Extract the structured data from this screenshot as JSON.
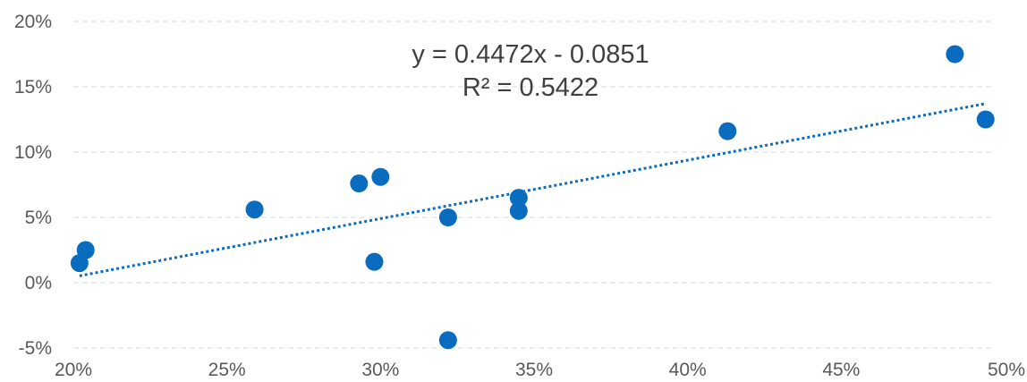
{
  "chart_data": {
    "type": "scatter",
    "title": "",
    "xlabel": "",
    "ylabel": "",
    "xlim": [
      0.2,
      0.5
    ],
    "ylim": [
      -0.05,
      0.2
    ],
    "x_ticks": [
      0.2,
      0.25,
      0.3,
      0.35,
      0.4,
      0.45,
      0.5
    ],
    "x_tick_labels": [
      "20%",
      "25%",
      "30%",
      "35%",
      "40%",
      "45%",
      "50%"
    ],
    "y_ticks": [
      -0.05,
      0,
      0.05,
      0.1,
      0.15,
      0.2
    ],
    "y_tick_labels": [
      "-5%",
      "0%",
      "5%",
      "10%",
      "15%",
      "20%"
    ],
    "grid": "horizontal dashed",
    "legend": "none",
    "color": "#0a6cbf",
    "series": [
      {
        "points": [
          {
            "x": 0.202,
            "y": 0.015
          },
          {
            "x": 0.204,
            "y": 0.025
          },
          {
            "x": 0.259,
            "y": 0.056
          },
          {
            "x": 0.293,
            "y": 0.076
          },
          {
            "x": 0.298,
            "y": 0.016
          },
          {
            "x": 0.3,
            "y": 0.081
          },
          {
            "x": 0.322,
            "y": 0.05
          },
          {
            "x": 0.322,
            "y": -0.044
          },
          {
            "x": 0.345,
            "y": 0.065
          },
          {
            "x": 0.345,
            "y": 0.055
          },
          {
            "x": 0.413,
            "y": 0.116
          },
          {
            "x": 0.487,
            "y": 0.175
          },
          {
            "x": 0.497,
            "y": 0.125
          }
        ]
      }
    ],
    "trendline": {
      "type": "linear",
      "slope": 0.4472,
      "intercept": -0.0851,
      "x_range": [
        0.202,
        0.497
      ],
      "equation_label": "y = 0.4472x - 0.0851",
      "r2_label": "R² = 0.5422"
    }
  }
}
